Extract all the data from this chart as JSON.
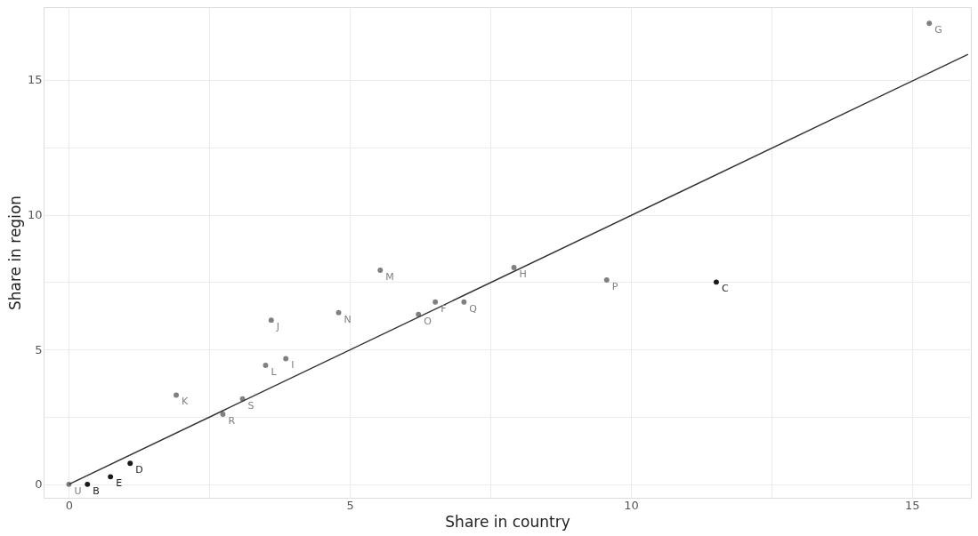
{
  "chart_data": {
    "type": "scatter",
    "xlabel": "Share in country",
    "ylabel": "Share in region",
    "xlim": [
      -0.45,
      16.05
    ],
    "ylim": [
      -0.5,
      17.7
    ],
    "xticks": [
      0,
      {
        "value": 2.5,
        "label": null
      },
      5,
      {
        "value": 7.5,
        "label": null
      },
      10,
      {
        "value": 12.5,
        "label": null
      },
      15
    ],
    "yticks": [
      0,
      {
        "value": 2.5,
        "label": null
      },
      5,
      {
        "value": 7.5,
        "label": null
      },
      10,
      {
        "value": 12.5,
        "label": null
      },
      15
    ],
    "grid": true,
    "marker": "circle",
    "series": [
      {
        "x": [
          0,
          0.33,
          0.74,
          1.09,
          1.91,
          2.74,
          3.09,
          3.5,
          3.86,
          3.6,
          4.8,
          5.54,
          6.22,
          6.52,
          7.03,
          7.92,
          9.57,
          11.52,
          15.31
        ],
        "values": [
          0,
          0,
          0.28,
          0.78,
          3.31,
          2.6,
          3.17,
          4.41,
          4.66,
          6.09,
          6.37,
          7.94,
          6.3,
          6.76,
          6.76,
          8.04,
          7.58,
          7.5,
          17.1
        ],
        "colors": [
          "#808080",
          "#1a1a1a",
          "#1a1a1a",
          "#1a1a1a",
          "#808080",
          "#808080",
          "#808080",
          "#808080",
          "#808080",
          "#808080",
          "#808080",
          "#808080",
          "#808080",
          "#808080",
          "#808080",
          "#808080",
          "#808080",
          "#1a1a1a",
          "#808080"
        ]
      },
      {
        "type": "line",
        "marker": "none",
        "color": "#333333",
        "x": [
          0,
          16
        ],
        "values": [
          0,
          15.95
        ]
      }
    ],
    "annotations": [
      {
        "text": "U",
        "x": 0,
        "y": 0
      },
      {
        "text": "B",
        "x": 0.33,
        "y": 0
      },
      {
        "text": "E",
        "x": 0.74,
        "y": 0.28
      },
      {
        "text": "D",
        "x": 1.09,
        "y": 0.78
      },
      {
        "text": "K",
        "x": 1.91,
        "y": 3.31
      },
      {
        "text": "R",
        "x": 2.74,
        "y": 2.6
      },
      {
        "text": "S",
        "x": 3.09,
        "y": 3.17
      },
      {
        "text": "L",
        "x": 3.5,
        "y": 4.41
      },
      {
        "text": "I",
        "x": 3.86,
        "y": 4.66
      },
      {
        "text": "J",
        "x": 3.6,
        "y": 6.09
      },
      {
        "text": "N",
        "x": 4.8,
        "y": 6.37
      },
      {
        "text": "M",
        "x": 5.54,
        "y": 7.94
      },
      {
        "text": "O",
        "x": 6.22,
        "y": 6.3
      },
      {
        "text": "F",
        "x": 6.52,
        "y": 6.76
      },
      {
        "text": "Q",
        "x": 7.03,
        "y": 6.76
      },
      {
        "text": "H",
        "x": 7.92,
        "y": 8.04
      },
      {
        "text": "P",
        "x": 9.57,
        "y": 7.58
      },
      {
        "text": "C",
        "x": 11.52,
        "y": 7.5
      },
      {
        "text": "G",
        "x": 15.31,
        "y": 17.1
      }
    ]
  }
}
